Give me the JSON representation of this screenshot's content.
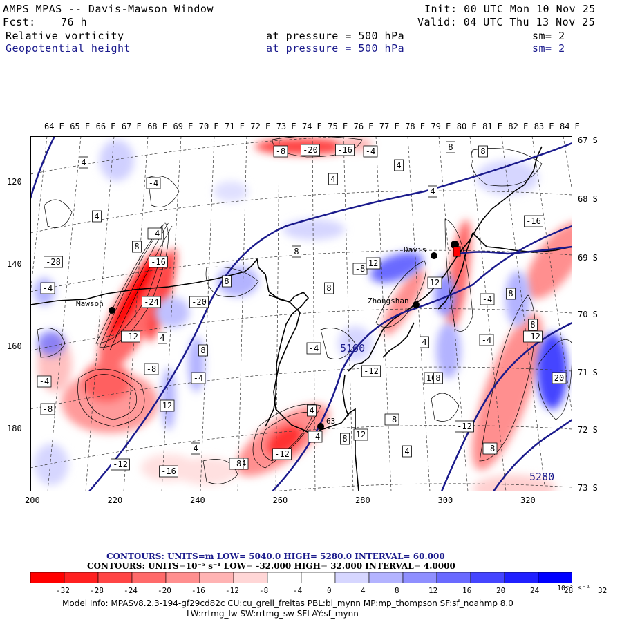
{
  "header": {
    "title": "AMPS MPAS -- Davis-Mawson Window",
    "fcst_label": "Fcst:",
    "fcst_value": "76 h",
    "init": "Init: 00 UTC Mon 10 Nov 25",
    "valid": "Valid: 04 UTC Thu 13 Nov 25"
  },
  "fields": [
    {
      "name": "Relative vorticity",
      "level": "at pressure =  500 hPa",
      "sm": "sm= 2"
    },
    {
      "name": "Geopotential height",
      "level": "at pressure =  500 hPa",
      "sm": "sm= 2"
    }
  ],
  "map": {
    "longitude_labels": [
      "64 E",
      "65 E",
      "66 E",
      "67 E",
      "68 E",
      "69 E",
      "70 E",
      "71 E",
      "72 E",
      "73 E",
      "74 E",
      "75 E",
      "76 E",
      "77 E",
      "78 E",
      "79 E",
      "80 E",
      "81 E",
      "82 E",
      "83 E",
      "84 E"
    ],
    "latitude_labels": [
      "67 S",
      "68 S",
      "69 S",
      "70 S",
      "71 S",
      "72 S",
      "73 S"
    ],
    "y_ticks": [
      "120",
      "140",
      "160",
      "180"
    ],
    "x_ticks": [
      "200",
      "220",
      "240",
      "260",
      "280",
      "300",
      "320"
    ],
    "stations": [
      {
        "name": "Mawson"
      },
      {
        "name": "Davis"
      },
      {
        "name": "Zhongshan"
      },
      {
        "name": "63"
      }
    ],
    "height_labels": [
      "5160",
      "5280"
    ],
    "vorticity_labels": [
      "-8",
      "-20",
      "-16",
      "-4",
      "8",
      "8",
      "4",
      "4",
      "-4",
      "4",
      "4",
      "4",
      "8",
      "8",
      "8",
      "-8",
      "-20",
      "-28",
      "-16",
      "-4",
      "-24",
      "-12",
      "-8",
      "4",
      "-4",
      "12",
      "12",
      "8",
      "12",
      "-4",
      "8",
      "-4",
      "-12",
      "-16",
      "-12",
      "-4",
      "16",
      "20",
      "8",
      "-12",
      "-8",
      "-12",
      "4",
      "8",
      "-8",
      "-4",
      "4",
      "-4",
      "-8",
      "-12",
      "-16",
      "12",
      "4",
      "-4",
      "4",
      "-8",
      "-4",
      "8",
      "8"
    ]
  },
  "contour_info": [
    {
      "text": "CONTOURS:  UNITS=m  LOW=  5040.0         HIGH=  5280.0          INTERVAL=  60.000"
    },
    {
      "text": "CONTOURS:  UNITS=10⁻⁵ s⁻¹   LOW=  -32.000          HIGH=  32.000          INTERVAL=  4.0000"
    }
  ],
  "colorbar": {
    "labels": [
      "-32",
      "-28",
      "-24",
      "-20",
      "-16",
      "-12",
      "-8",
      "-4",
      "0",
      "4",
      "8",
      "12",
      "16",
      "20",
      "24",
      "28",
      "32"
    ],
    "units": "10⁻⁵ s⁻¹",
    "colors": [
      "#ff0000",
      "#ff2020",
      "#ff4545",
      "#ff6a6a",
      "#ff8f8f",
      "#ffb3b3",
      "#ffd6d6",
      "#ffffff",
      "#ffffff",
      "#d6d6ff",
      "#b3b3ff",
      "#8f8fff",
      "#6a6aff",
      "#4545ff",
      "#2020ff",
      "#0000ff"
    ]
  },
  "model_info": {
    "line1": "Model Info: MPASv8.2.3-194-gf29cd82c CU:cu_grell_freitas PBL:bl_mynn MP:mp_thompson SF:sf_noahmp 8.0",
    "line2": "LW:rrtmg_lw SW:rrtmg_sw SFLAY:sf_mynn"
  }
}
